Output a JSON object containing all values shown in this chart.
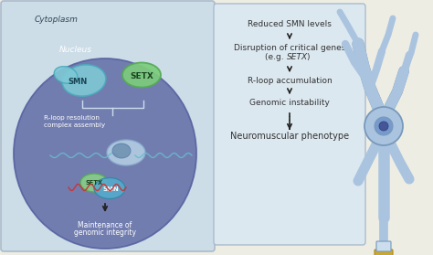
{
  "bg_color": "#eeede4",
  "left_panel_color": "#ccdde8",
  "left_panel_edge": "#aabbcc",
  "cytoplasm_label": "Cytoplasm",
  "nucleus_label": "Nucleus",
  "nucleus_color": "#6670a8",
  "nucleus_edge": "#5560a0",
  "smn_blob_color": "#7ec8d5",
  "smn_blob_edge": "#4aabbc",
  "smn_label": "SMN",
  "setx_ellipse_color": "#7ccc7c",
  "setx_ellipse_edge": "#55aa55",
  "setx_label": "SETX",
  "rloop_text_line1": "R-loop resolution",
  "rloop_text_line2": "complex assembly",
  "bottom_setx_color": "#88cc88",
  "bottom_setx_edge": "#55aa55",
  "bottom_smn_color": "#55aacc",
  "bottom_smn_edge": "#3388aa",
  "maintenance_text_line1": "Maintenance of",
  "maintenance_text_line2": "genomic integrity",
  "right_panel_color": "#dce8f0",
  "right_panel_edge": "#aabbcc",
  "step1": "Reduced SMN levels",
  "step2a": "Disruption of critical genes",
  "step2b": "(e.g. ",
  "step2b_italic": "SETX",
  "step2b_close": ")",
  "step3": "R-loop accumulation",
  "step4": "Genomic instability",
  "step5": "Neuromuscular phenotype",
  "text_color": "#333333",
  "arrow_color": "#222222",
  "neuron_color": "#aac4e0",
  "neuron_edge": "#7799bb",
  "soma_nucleus_color": "#7799cc",
  "soma_nucleolus_color": "#445599",
  "axon_terminal_color": "#ccddee",
  "muscle_color": "#c8a830",
  "muscle_edge": "#aa8820",
  "wavy_blue": "#66bbcc",
  "wavy_red": "#cc3333",
  "bracket_color": "#ccddee"
}
